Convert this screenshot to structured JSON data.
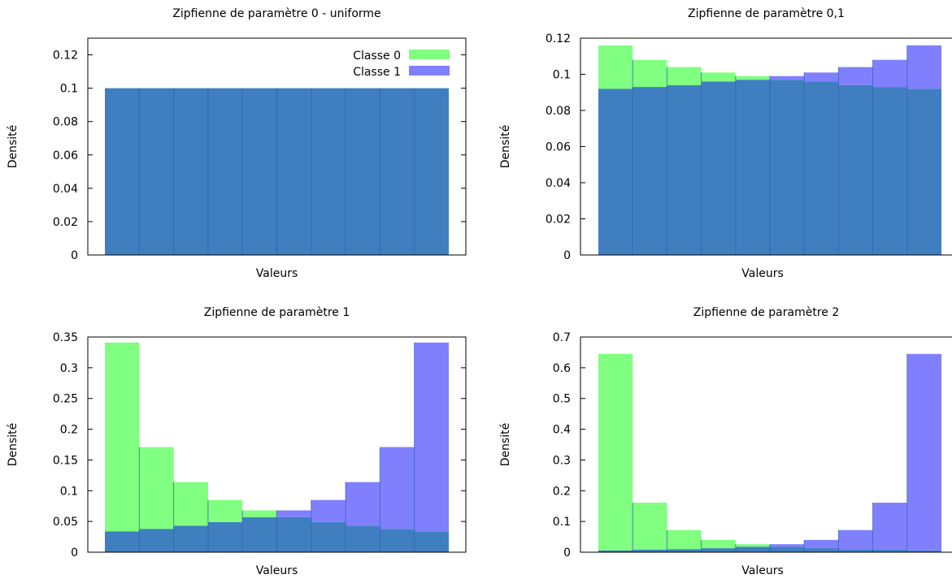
{
  "colors": {
    "class0": "#80ff80",
    "class1": "#8080ff",
    "overlap": "#3f7fbf",
    "frame": "#000000"
  },
  "legend": {
    "class0": "Classe 0",
    "class1": "Classe 1"
  },
  "chart_data": [
    {
      "type": "bar",
      "title": "Zipfienne de paramètre 0 - uniforme",
      "xlabel": "Valeurs",
      "ylabel": "Densité",
      "ylim": [
        0,
        0.13
      ],
      "yticks": [
        "0",
        "0.02",
        "0.04",
        "0.06",
        "0.08",
        "0.1",
        "0.12"
      ],
      "legend": "top-right",
      "grid": false,
      "series": [
        {
          "name": "Classe 0",
          "values": [
            0.1,
            0.1,
            0.1,
            0.1,
            0.1,
            0.1,
            0.1,
            0.1,
            0.1,
            0.1
          ]
        },
        {
          "name": "Classe 1",
          "values": [
            0.1,
            0.1,
            0.1,
            0.1,
            0.1,
            0.1,
            0.1,
            0.1,
            0.1,
            0.1
          ]
        }
      ]
    },
    {
      "type": "bar",
      "title": "Zipfienne de paramètre 0,1",
      "xlabel": "Valeurs",
      "ylabel": "Densité",
      "ylim": [
        0,
        0.12
      ],
      "yticks": [
        "0",
        "0.02",
        "0.04",
        "0.06",
        "0.08",
        "0.1",
        "0.12"
      ],
      "grid": false,
      "series": [
        {
          "name": "Classe 0",
          "values": [
            0.116,
            0.108,
            0.104,
            0.101,
            0.099,
            0.097,
            0.096,
            0.094,
            0.093,
            0.092
          ]
        },
        {
          "name": "Classe 1",
          "values": [
            0.092,
            0.093,
            0.094,
            0.096,
            0.097,
            0.099,
            0.101,
            0.104,
            0.108,
            0.116
          ]
        }
      ]
    },
    {
      "type": "bar",
      "title": "Zipfienne de paramètre 1",
      "xlabel": "Valeurs",
      "ylabel": "Densité",
      "ylim": [
        0,
        0.35
      ],
      "yticks": [
        "0",
        "0.05",
        "0.1",
        "0.15",
        "0.2",
        "0.25",
        "0.3",
        "0.35"
      ],
      "grid": false,
      "series": [
        {
          "name": "Classe 0",
          "values": [
            0.341,
            0.171,
            0.114,
            0.085,
            0.068,
            0.057,
            0.049,
            0.043,
            0.038,
            0.034
          ]
        },
        {
          "name": "Classe 1",
          "values": [
            0.034,
            0.038,
            0.043,
            0.049,
            0.057,
            0.068,
            0.085,
            0.114,
            0.171,
            0.341
          ]
        }
      ]
    },
    {
      "type": "bar",
      "title": "Zipfienne de paramètre 2",
      "xlabel": "Valeurs",
      "ylabel": "Densité",
      "ylim": [
        0,
        0.7
      ],
      "yticks": [
        "0",
        "0.1",
        "0.2",
        "0.3",
        "0.4",
        "0.5",
        "0.6",
        "0.7"
      ],
      "grid": false,
      "series": [
        {
          "name": "Classe 0",
          "values": [
            0.645,
            0.161,
            0.072,
            0.04,
            0.026,
            0.018,
            0.013,
            0.01,
            0.008,
            0.006
          ]
        },
        {
          "name": "Classe 1",
          "values": [
            0.006,
            0.008,
            0.01,
            0.013,
            0.018,
            0.026,
            0.04,
            0.072,
            0.161,
            0.645
          ]
        }
      ]
    }
  ]
}
